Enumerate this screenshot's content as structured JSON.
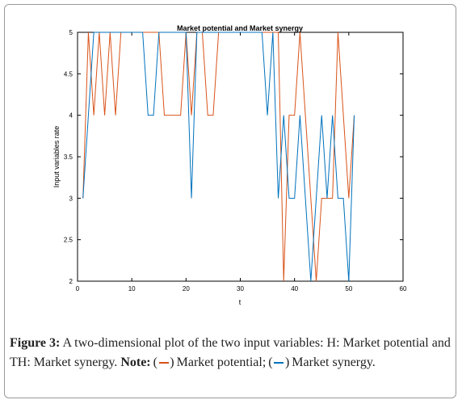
{
  "chart_data": {
    "type": "line",
    "title": "Market potential and Market synergy",
    "xlabel": "t",
    "ylabel": "Input variables rate",
    "xlim": [
      0,
      60
    ],
    "ylim": [
      2,
      5
    ],
    "xticks": [
      0,
      10,
      20,
      30,
      40,
      50,
      60
    ],
    "yticks": [
      2,
      2.5,
      3,
      3.5,
      4,
      4.5,
      5
    ],
    "ytick_labels": [
      "2",
      "2.5",
      "3",
      "3.5",
      "4",
      "4.5",
      "5"
    ],
    "grid": false,
    "x": [
      1,
      2,
      3,
      4,
      5,
      6,
      7,
      8,
      9,
      10,
      11,
      12,
      13,
      14,
      15,
      16,
      17,
      18,
      19,
      20,
      21,
      22,
      23,
      24,
      25,
      26,
      27,
      28,
      29,
      30,
      31,
      32,
      33,
      34,
      35,
      36,
      37,
      38,
      39,
      40,
      41,
      42,
      43,
      44,
      45,
      46,
      47,
      48,
      49,
      50,
      51
    ],
    "series": [
      {
        "name": "Market potential",
        "color": "#d95319",
        "values": [
          3,
          5,
          4,
          5,
          4,
          5,
          4,
          5,
          5,
          5,
          5,
          5,
          5,
          5,
          5,
          4,
          4,
          4,
          4,
          5,
          4,
          5,
          5,
          4,
          4,
          5,
          5,
          5,
          5,
          5,
          5,
          5,
          5,
          5,
          5,
          5,
          5,
          2,
          4,
          4,
          5,
          4,
          3,
          2,
          3,
          3,
          3,
          5,
          4,
          3,
          4
        ]
      },
      {
        "name": "Market synergy",
        "color": "#0072bd",
        "values": [
          3,
          4,
          5,
          5,
          5,
          5,
          5,
          5,
          5,
          5,
          5,
          5,
          4,
          4,
          5,
          5,
          5,
          5,
          5,
          5,
          3,
          5,
          5,
          5,
          5,
          5,
          5,
          5,
          5,
          5,
          5,
          5,
          5,
          5,
          4,
          5,
          3,
          4,
          3,
          3,
          4,
          3,
          2,
          3,
          4,
          3,
          4,
          3,
          3,
          2,
          4
        ]
      }
    ]
  },
  "caption": {
    "label": "Figure 3:",
    "text1": " A two-dimensional plot of the two input variables: H: Market potential and TH:  Market synergy.  ",
    "note_label": "Note:",
    "text2": " Market potential; ",
    "text3": " Market synergy."
  }
}
